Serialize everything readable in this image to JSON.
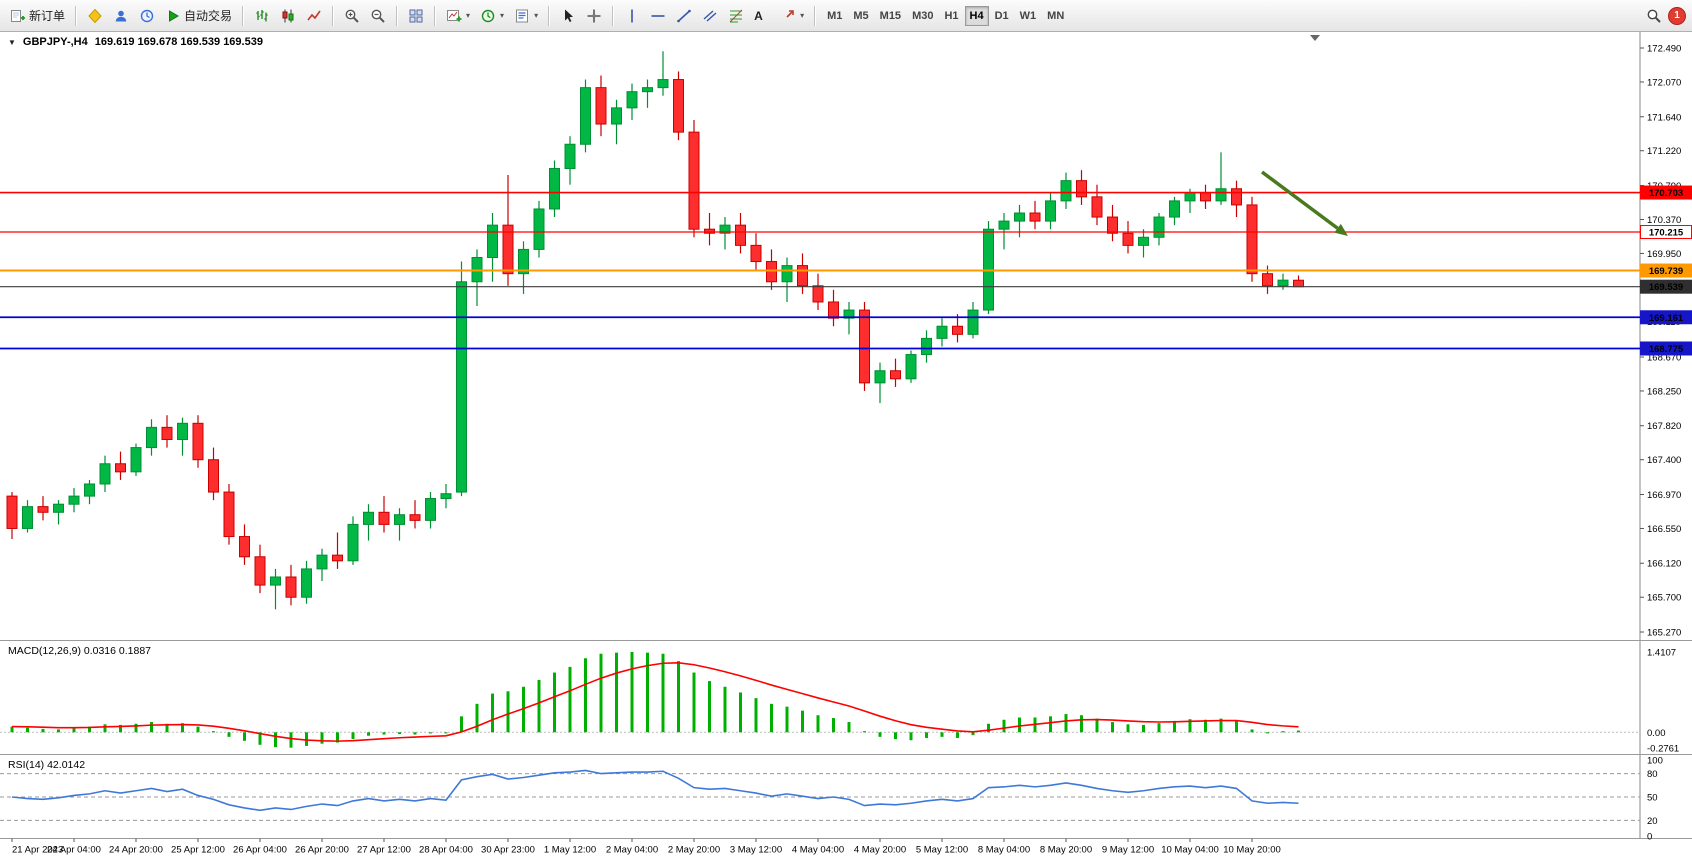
{
  "app": {
    "toolbar": {
      "new_order_label": "新订单",
      "auto_trading_label": "自动交易",
      "text_tool_label": "A",
      "timeframes": [
        "M1",
        "M5",
        "M15",
        "M30",
        "H1",
        "H4",
        "D1",
        "W1",
        "MN"
      ],
      "active_timeframe": "H4",
      "notification_count": "1"
    }
  },
  "chart": {
    "one_click_arrow": "▼",
    "symbol_period": "GBPJPY-,H4",
    "ohlc_text": "169.619 169.678 169.539 169.539",
    "macd_label": "MACD(12,26,9) 0.0316 0.1887",
    "rsi_label": "RSI(14) 42.0142"
  },
  "chart_data": {
    "type": "candlestick",
    "symbol": "GBPJPY",
    "period": "H4",
    "current_open": 169.619,
    "current_high": 169.678,
    "current_low": 169.539,
    "current_close": 169.539,
    "price_axis_ticks": [
      "172.490",
      "172.070",
      "171.640",
      "171.220",
      "170.790",
      "170.370",
      "169.950",
      "169.530",
      "169.110",
      "168.670",
      "168.250",
      "167.820",
      "167.400",
      "166.970",
      "166.550",
      "166.120",
      "165.700",
      "165.270"
    ],
    "time_label_step": 4,
    "time_labels": [
      "21 Apr 2023",
      "24 Apr 04:00",
      "24 Apr 20:00",
      "25 Apr 12:00",
      "26 Apr 04:00",
      "26 Apr 20:00",
      "27 Apr 12:00",
      "28 Apr 04:00",
      "30 Apr 23:00",
      "1 May 12:00",
      "2 May 04:00",
      "2 May 20:00",
      "3 May 12:00",
      "4 May 04:00",
      "4 May 20:00",
      "5 May 12:00",
      "8 May 04:00",
      "8 May 20:00",
      "9 May 12:00",
      "10 May 04:00",
      "10 May 20:00"
    ],
    "candles": [
      [
        166.95,
        167.0,
        166.42,
        166.55
      ],
      [
        166.55,
        166.9,
        166.5,
        166.82
      ],
      [
        166.82,
        166.95,
        166.65,
        166.75
      ],
      [
        166.75,
        166.9,
        166.6,
        166.85
      ],
      [
        166.85,
        167.05,
        166.75,
        166.95
      ],
      [
        166.95,
        167.15,
        166.85,
        167.1
      ],
      [
        167.1,
        167.45,
        167.0,
        167.35
      ],
      [
        167.35,
        167.5,
        167.15,
        167.25
      ],
      [
        167.25,
        167.6,
        167.2,
        167.55
      ],
      [
        167.55,
        167.9,
        167.45,
        167.8
      ],
      [
        167.8,
        167.95,
        167.55,
        167.65
      ],
      [
        167.65,
        167.92,
        167.45,
        167.85
      ],
      [
        167.85,
        167.95,
        167.3,
        167.4
      ],
      [
        167.4,
        167.55,
        166.9,
        167.0
      ],
      [
        167.0,
        167.1,
        166.35,
        166.45
      ],
      [
        166.45,
        166.6,
        166.1,
        166.2
      ],
      [
        166.2,
        166.35,
        165.75,
        165.85
      ],
      [
        165.85,
        166.05,
        165.55,
        165.95
      ],
      [
        165.95,
        166.1,
        165.6,
        165.7
      ],
      [
        165.7,
        166.15,
        165.62,
        166.05
      ],
      [
        166.05,
        166.3,
        165.9,
        166.22
      ],
      [
        166.22,
        166.5,
        166.05,
        166.15
      ],
      [
        166.15,
        166.7,
        166.1,
        166.6
      ],
      [
        166.6,
        166.85,
        166.4,
        166.75
      ],
      [
        166.75,
        166.95,
        166.5,
        166.6
      ],
      [
        166.6,
        166.8,
        166.4,
        166.72
      ],
      [
        166.72,
        166.9,
        166.55,
        166.65
      ],
      [
        166.65,
        167.0,
        166.55,
        166.92
      ],
      [
        166.92,
        167.1,
        166.8,
        166.98
      ],
      [
        167.0,
        169.85,
        166.95,
        169.6
      ],
      [
        169.6,
        170.0,
        169.3,
        169.9
      ],
      [
        169.9,
        170.45,
        169.6,
        170.3
      ],
      [
        170.3,
        170.92,
        169.55,
        169.7
      ],
      [
        169.7,
        170.1,
        169.45,
        170.0
      ],
      [
        170.0,
        170.6,
        169.9,
        170.5
      ],
      [
        170.5,
        171.1,
        170.4,
        171.0
      ],
      [
        171.0,
        171.4,
        170.8,
        171.3
      ],
      [
        171.3,
        172.1,
        171.2,
        172.0
      ],
      [
        172.0,
        172.15,
        171.4,
        171.55
      ],
      [
        171.55,
        171.85,
        171.3,
        171.75
      ],
      [
        171.75,
        172.05,
        171.6,
        171.95
      ],
      [
        171.95,
        172.1,
        171.75,
        172.0
      ],
      [
        172.0,
        172.45,
        171.9,
        172.1
      ],
      [
        172.1,
        172.2,
        171.35,
        171.45
      ],
      [
        171.45,
        171.6,
        170.15,
        170.25
      ],
      [
        170.25,
        170.45,
        170.05,
        170.2
      ],
      [
        170.2,
        170.4,
        170.0,
        170.3
      ],
      [
        170.3,
        170.45,
        169.95,
        170.05
      ],
      [
        170.05,
        170.2,
        169.75,
        169.85
      ],
      [
        169.85,
        170.0,
        169.5,
        169.6
      ],
      [
        169.6,
        169.9,
        169.35,
        169.8
      ],
      [
        169.8,
        169.95,
        169.45,
        169.55
      ],
      [
        169.55,
        169.7,
        169.25,
        169.35
      ],
      [
        169.35,
        169.5,
        169.05,
        169.15
      ],
      [
        169.15,
        169.35,
        168.95,
        169.25
      ],
      [
        169.25,
        169.35,
        168.25,
        168.35
      ],
      [
        168.35,
        168.6,
        168.1,
        168.5
      ],
      [
        168.5,
        168.65,
        168.3,
        168.4
      ],
      [
        168.4,
        168.75,
        168.35,
        168.7
      ],
      [
        168.7,
        169.0,
        168.6,
        168.9
      ],
      [
        168.9,
        169.15,
        168.8,
        169.05
      ],
      [
        169.05,
        169.2,
        168.85,
        168.95
      ],
      [
        168.95,
        169.35,
        168.9,
        169.25
      ],
      [
        169.25,
        170.35,
        169.2,
        170.25
      ],
      [
        170.25,
        170.45,
        170.0,
        170.35
      ],
      [
        170.35,
        170.55,
        170.15,
        170.45
      ],
      [
        170.45,
        170.6,
        170.25,
        170.35
      ],
      [
        170.35,
        170.7,
        170.25,
        170.6
      ],
      [
        170.6,
        170.95,
        170.5,
        170.85
      ],
      [
        170.85,
        170.98,
        170.55,
        170.65
      ],
      [
        170.65,
        170.8,
        170.3,
        170.4
      ],
      [
        170.4,
        170.55,
        170.1,
        170.2
      ],
      [
        170.2,
        170.35,
        169.95,
        170.05
      ],
      [
        170.05,
        170.25,
        169.9,
        170.15
      ],
      [
        170.15,
        170.45,
        170.05,
        170.4
      ],
      [
        170.4,
        170.65,
        170.3,
        170.6
      ],
      [
        170.6,
        170.75,
        170.45,
        170.7
      ],
      [
        170.7,
        170.8,
        170.5,
        170.6
      ],
      [
        170.6,
        171.2,
        170.55,
        170.75
      ],
      [
        170.75,
        170.85,
        170.4,
        170.55
      ],
      [
        170.55,
        170.65,
        169.6,
        169.7
      ],
      [
        169.7,
        169.8,
        169.45,
        169.55
      ],
      [
        169.55,
        169.7,
        169.5,
        169.62
      ],
      [
        169.619,
        169.678,
        169.539,
        169.539
      ]
    ],
    "levels": [
      {
        "price_label": "170.703",
        "value": 170.703,
        "color": "#FF0000",
        "badge_bg": "#FF0000",
        "badge_fg": "#FFFFFF",
        "line_width": 1.6
      },
      {
        "price_label": "170.215",
        "value": 170.215,
        "color": "#FF0000",
        "badge_bg": "#FFFFFF",
        "badge_fg": "#FF0000",
        "badge_border": "#FF0000",
        "line_width": 1.2
      },
      {
        "price_label": "169.739",
        "value": 169.739,
        "color": "#FF9900",
        "badge_bg": "#FF9900",
        "badge_fg": "#FFFFFF",
        "line_width": 2
      },
      {
        "price_label": "169.539",
        "value": 169.539,
        "color": "#3C3C3C",
        "badge_bg": "#2F2F2F",
        "badge_fg": "#FFFFFF",
        "line_width": 1.2
      },
      {
        "price_label": "169.161",
        "value": 169.161,
        "color": "#0000D8",
        "badge_bg": "#1616C8",
        "badge_fg": "#FFFFFF",
        "line_width": 1.8
      },
      {
        "price_label": "168.775",
        "value": 168.775,
        "color": "#0000D8",
        "badge_bg": "#1616C8",
        "badge_fg": "#FFFFFF",
        "line_width": 1.8
      }
    ],
    "annotation_arrow": {
      "color": "#4a7a1e"
    },
    "macd": {
      "title": "MACD(12,26,9)",
      "macd_value": 0.0316,
      "signal_value": 0.1887,
      "axis_labels": [
        "1.4107",
        "0.00",
        "-0.2761"
      ],
      "histogram_color": "#00B000",
      "signal_color": "#FF0000",
      "histogram": [
        0.1,
        0.08,
        0.06,
        0.05,
        0.08,
        0.1,
        0.14,
        0.13,
        0.15,
        0.18,
        0.15,
        0.16,
        0.1,
        0.02,
        -0.08,
        -0.15,
        -0.22,
        -0.26,
        -0.27,
        -0.24,
        -0.2,
        -0.18,
        -0.12,
        -0.06,
        -0.04,
        -0.03,
        -0.04,
        -0.02,
        -0.02,
        0.28,
        0.5,
        0.68,
        0.72,
        0.8,
        0.92,
        1.05,
        1.15,
        1.3,
        1.38,
        1.4,
        1.41,
        1.4,
        1.38,
        1.25,
        1.05,
        0.9,
        0.8,
        0.7,
        0.6,
        0.5,
        0.45,
        0.38,
        0.3,
        0.25,
        0.18,
        0.02,
        -0.08,
        -0.12,
        -0.14,
        -0.1,
        -0.08,
        -0.1,
        -0.05,
        0.15,
        0.22,
        0.26,
        0.26,
        0.28,
        0.32,
        0.3,
        0.24,
        0.18,
        0.14,
        0.13,
        0.16,
        0.2,
        0.23,
        0.22,
        0.24,
        0.2,
        0.05,
        -0.02,
        0.02,
        0.03
      ]
    },
    "rsi": {
      "title": "RSI(14)",
      "value": 42.0142,
      "levels": [
        80,
        50,
        20
      ],
      "axis_labels": [
        "100",
        "80",
        "50",
        "20",
        "0"
      ],
      "line_color": "#3E79D9",
      "values": [
        50,
        48,
        47,
        49,
        52,
        54,
        58,
        55,
        58,
        61,
        57,
        60,
        52,
        47,
        40,
        36,
        33,
        36,
        34,
        38,
        41,
        39,
        45,
        48,
        45,
        47,
        45,
        48,
        46,
        72,
        76,
        79,
        73,
        75,
        78,
        81,
        82,
        84,
        80,
        81,
        82,
        82,
        83,
        74,
        62,
        60,
        61,
        58,
        55,
        51,
        54,
        51,
        48,
        50,
        47,
        39,
        41,
        40,
        42,
        45,
        47,
        45,
        48,
        62,
        63,
        65,
        63,
        65,
        68,
        65,
        61,
        58,
        56,
        58,
        61,
        63,
        64,
        62,
        64,
        61,
        45,
        42,
        43,
        42
      ]
    },
    "colors": {
      "up": "#00B843",
      "up_border": "#008F33",
      "down": "#FF2E2E",
      "down_border": "#C80000",
      "axis_text": "#000000",
      "bg": "#FFFFFF"
    }
  }
}
